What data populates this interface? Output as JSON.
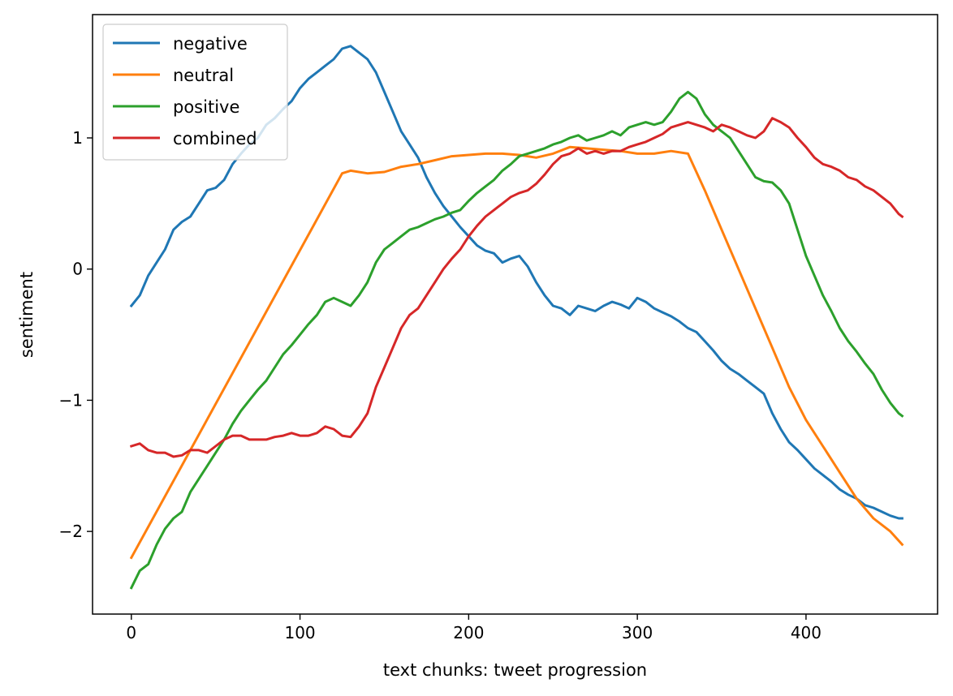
{
  "chart_data": {
    "type": "line",
    "title": "",
    "xlabel": "text chunks: tweet progression",
    "ylabel": "sentiment",
    "xlim": [
      -23,
      478
    ],
    "ylim": [
      -2.63,
      1.94
    ],
    "xticks": [
      0,
      100,
      200,
      300,
      400
    ],
    "yticks": [
      1,
      0,
      -1,
      -2
    ],
    "xtick_labels": [
      "0",
      "100",
      "200",
      "300",
      "400"
    ],
    "ytick_labels": [
      "1",
      "0",
      "−1",
      "−2"
    ],
    "legend_position": "upper-left",
    "grid": false,
    "series": [
      {
        "name": "negative",
        "color": "#1f77b4",
        "x": [
          0,
          5,
          10,
          15,
          20,
          25,
          30,
          35,
          40,
          45,
          50,
          55,
          60,
          65,
          70,
          75,
          80,
          85,
          90,
          95,
          100,
          105,
          110,
          115,
          120,
          125,
          130,
          135,
          140,
          145,
          150,
          155,
          160,
          165,
          170,
          175,
          180,
          185,
          190,
          195,
          200,
          205,
          210,
          215,
          220,
          225,
          230,
          235,
          240,
          245,
          250,
          255,
          260,
          265,
          270,
          275,
          280,
          285,
          290,
          295,
          300,
          305,
          310,
          315,
          320,
          325,
          330,
          335,
          340,
          345,
          350,
          355,
          360,
          365,
          370,
          375,
          380,
          385,
          390,
          395,
          400,
          405,
          410,
          415,
          420,
          425,
          430,
          435,
          440,
          445,
          450,
          455,
          457
        ],
        "y": [
          -0.28,
          -0.2,
          -0.05,
          0.05,
          0.15,
          0.3,
          0.36,
          0.4,
          0.5,
          0.6,
          0.62,
          0.68,
          0.8,
          0.88,
          0.95,
          1.0,
          1.1,
          1.15,
          1.22,
          1.28,
          1.38,
          1.45,
          1.5,
          1.55,
          1.6,
          1.68,
          1.7,
          1.65,
          1.6,
          1.5,
          1.35,
          1.2,
          1.05,
          0.95,
          0.85,
          0.7,
          0.58,
          0.48,
          0.4,
          0.32,
          0.25,
          0.18,
          0.14,
          0.12,
          0.05,
          0.08,
          0.1,
          0.02,
          -0.1,
          -0.2,
          -0.28,
          -0.3,
          -0.35,
          -0.28,
          -0.3,
          -0.32,
          -0.28,
          -0.25,
          -0.27,
          -0.3,
          -0.22,
          -0.25,
          -0.3,
          -0.33,
          -0.36,
          -0.4,
          -0.45,
          -0.48,
          -0.55,
          -0.62,
          -0.7,
          -0.76,
          -0.8,
          -0.85,
          -0.9,
          -0.95,
          -1.1,
          -1.22,
          -1.32,
          -1.38,
          -1.45,
          -1.52,
          -1.57,
          -1.62,
          -1.68,
          -1.72,
          -1.75,
          -1.8,
          -1.82,
          -1.85,
          -1.88,
          -1.9,
          -1.9
        ]
      },
      {
        "name": "neutral",
        "color": "#ff7f0e",
        "x": [
          0,
          125,
          130,
          140,
          150,
          160,
          170,
          180,
          190,
          200,
          210,
          220,
          230,
          240,
          250,
          260,
          270,
          280,
          290,
          300,
          310,
          320,
          330,
          340,
          350,
          360,
          370,
          380,
          390,
          400,
          410,
          420,
          430,
          440,
          450,
          457
        ],
        "y": [
          -2.2,
          0.73,
          0.75,
          0.73,
          0.74,
          0.78,
          0.8,
          0.83,
          0.86,
          0.87,
          0.88,
          0.88,
          0.87,
          0.85,
          0.88,
          0.93,
          0.92,
          0.91,
          0.9,
          0.88,
          0.88,
          0.9,
          0.88,
          0.6,
          0.3,
          -0.0,
          -0.3,
          -0.6,
          -0.9,
          -1.15,
          -1.35,
          -1.55,
          -1.75,
          -1.9,
          -2.0,
          -2.1
        ]
      },
      {
        "name": "positive",
        "color": "#2ca02c",
        "x": [
          0,
          5,
          10,
          15,
          20,
          25,
          30,
          35,
          40,
          45,
          50,
          55,
          60,
          65,
          70,
          75,
          80,
          85,
          90,
          95,
          100,
          105,
          110,
          115,
          120,
          125,
          130,
          135,
          140,
          145,
          150,
          155,
          160,
          165,
          170,
          175,
          180,
          185,
          190,
          195,
          200,
          205,
          210,
          215,
          220,
          225,
          230,
          235,
          240,
          245,
          250,
          255,
          260,
          265,
          270,
          275,
          280,
          285,
          290,
          295,
          300,
          305,
          310,
          315,
          320,
          325,
          330,
          335,
          340,
          345,
          350,
          355,
          360,
          365,
          370,
          375,
          380,
          385,
          390,
          395,
          400,
          405,
          410,
          415,
          420,
          425,
          430,
          435,
          440,
          445,
          450,
          455,
          457
        ],
        "y": [
          -2.43,
          -2.3,
          -2.25,
          -2.1,
          -1.98,
          -1.9,
          -1.85,
          -1.7,
          -1.6,
          -1.5,
          -1.4,
          -1.3,
          -1.18,
          -1.08,
          -1.0,
          -0.92,
          -0.85,
          -0.75,
          -0.65,
          -0.58,
          -0.5,
          -0.42,
          -0.35,
          -0.25,
          -0.22,
          -0.25,
          -0.28,
          -0.2,
          -0.1,
          0.05,
          0.15,
          0.2,
          0.25,
          0.3,
          0.32,
          0.35,
          0.38,
          0.4,
          0.43,
          0.45,
          0.52,
          0.58,
          0.63,
          0.68,
          0.75,
          0.8,
          0.86,
          0.88,
          0.9,
          0.92,
          0.95,
          0.97,
          1.0,
          1.02,
          0.98,
          1.0,
          1.02,
          1.05,
          1.02,
          1.08,
          1.1,
          1.12,
          1.1,
          1.12,
          1.2,
          1.3,
          1.35,
          1.3,
          1.18,
          1.1,
          1.05,
          1.0,
          0.9,
          0.8,
          0.7,
          0.67,
          0.66,
          0.6,
          0.5,
          0.3,
          0.1,
          -0.05,
          -0.2,
          -0.32,
          -0.45,
          -0.55,
          -0.63,
          -0.72,
          -0.8,
          -0.92,
          -1.02,
          -1.1,
          -1.12
        ]
      },
      {
        "name": "combined",
        "color": "#d62728",
        "x": [
          0,
          5,
          10,
          15,
          20,
          25,
          30,
          35,
          40,
          45,
          50,
          55,
          60,
          65,
          70,
          75,
          80,
          85,
          90,
          95,
          100,
          105,
          110,
          115,
          120,
          125,
          130,
          135,
          140,
          145,
          150,
          155,
          160,
          165,
          170,
          175,
          180,
          185,
          190,
          195,
          200,
          205,
          210,
          215,
          220,
          225,
          230,
          235,
          240,
          245,
          250,
          255,
          260,
          265,
          270,
          275,
          280,
          285,
          290,
          295,
          300,
          305,
          310,
          315,
          320,
          325,
          330,
          335,
          340,
          345,
          350,
          355,
          360,
          365,
          370,
          375,
          380,
          385,
          390,
          395,
          400,
          405,
          410,
          415,
          420,
          425,
          430,
          435,
          440,
          445,
          450,
          455,
          457
        ],
        "y": [
          -1.35,
          -1.33,
          -1.38,
          -1.4,
          -1.4,
          -1.43,
          -1.42,
          -1.38,
          -1.38,
          -1.4,
          -1.35,
          -1.3,
          -1.27,
          -1.27,
          -1.3,
          -1.3,
          -1.3,
          -1.28,
          -1.27,
          -1.25,
          -1.27,
          -1.27,
          -1.25,
          -1.2,
          -1.22,
          -1.27,
          -1.28,
          -1.2,
          -1.1,
          -0.9,
          -0.75,
          -0.6,
          -0.45,
          -0.35,
          -0.3,
          -0.2,
          -0.1,
          0.0,
          0.08,
          0.15,
          0.25,
          0.33,
          0.4,
          0.45,
          0.5,
          0.55,
          0.58,
          0.6,
          0.65,
          0.72,
          0.8,
          0.86,
          0.88,
          0.92,
          0.88,
          0.9,
          0.88,
          0.9,
          0.9,
          0.93,
          0.95,
          0.97,
          1.0,
          1.03,
          1.08,
          1.1,
          1.12,
          1.1,
          1.08,
          1.05,
          1.1,
          1.08,
          1.05,
          1.02,
          1.0,
          1.05,
          1.15,
          1.12,
          1.08,
          1.0,
          0.93,
          0.85,
          0.8,
          0.78,
          0.75,
          0.7,
          0.68,
          0.63,
          0.6,
          0.55,
          0.5,
          0.42,
          0.4
        ]
      }
    ]
  }
}
